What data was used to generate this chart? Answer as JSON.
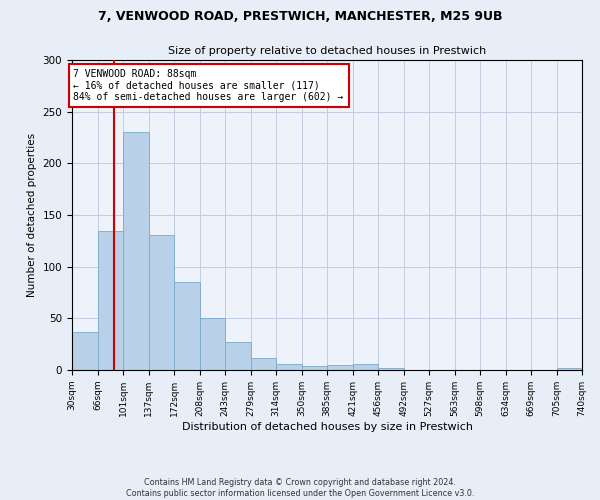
{
  "title_line1": "7, VENWOOD ROAD, PRESTWICH, MANCHESTER, M25 9UB",
  "title_line2": "Size of property relative to detached houses in Prestwich",
  "xlabel": "Distribution of detached houses by size in Prestwich",
  "ylabel": "Number of detached properties",
  "bar_color": "#b8d0e8",
  "bar_edge_color": "#7aaac8",
  "vline_x": 88,
  "vline_color": "#cc0000",
  "annotation_text": "7 VENWOOD ROAD: 88sqm\n← 16% of detached houses are smaller (117)\n84% of semi-detached houses are larger (602) →",
  "annotation_box_color": "white",
  "annotation_box_edge": "#cc0000",
  "bin_edges": [
    30,
    66,
    101,
    137,
    172,
    208,
    243,
    279,
    314,
    350,
    385,
    421,
    456,
    492,
    527,
    563,
    598,
    634,
    669,
    705,
    740
  ],
  "bar_heights": [
    37,
    135,
    230,
    131,
    85,
    50,
    27,
    12,
    6,
    4,
    5,
    6,
    2,
    0,
    0,
    0,
    0,
    0,
    0,
    2
  ],
  "ylim": [
    0,
    300
  ],
  "yticks": [
    0,
    50,
    100,
    150,
    200,
    250,
    300
  ],
  "footnote": "Contains HM Land Registry data © Crown copyright and database right 2024.\nContains public sector information licensed under the Open Government Licence v3.0.",
  "bg_color": "#e8eef8",
  "plot_bg_color": "#eef2fa",
  "grid_color": "#c0cce0"
}
